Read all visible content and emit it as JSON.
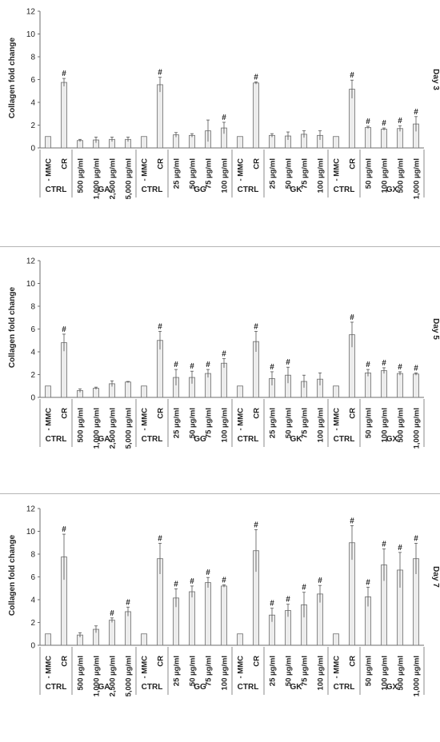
{
  "axis": {
    "ylabel": "Collagen fold change",
    "ylim": [
      0,
      12
    ],
    "yticks": [
      "0",
      "2",
      "4",
      "6",
      "8",
      "10",
      "12"
    ]
  },
  "category_labels": [
    "- MMC",
    "CR",
    "500 µg/ml",
    "1,000 µg/ml",
    "2,500 µg/ml",
    "5,000 µg/ml",
    "- MMC",
    "CR",
    "25 µg/ml",
    "50 µg/ml",
    "75 µg/ml",
    "100 µg/ml",
    "- MMC",
    "CR",
    "25 µg/ml",
    "50 µg/ml",
    "75 µg/ml",
    "100 µg/ml",
    "- MMC",
    "CR",
    "50 µg/ml",
    "100 µg/ml",
    "500 µg/ml",
    "1,000 µg/ml"
  ],
  "groups": [
    {
      "label": "CTRL",
      "count": 2
    },
    {
      "label": "GA",
      "count": 4
    },
    {
      "label": "CTRL",
      "count": 2
    },
    {
      "label": "GG",
      "count": 4
    },
    {
      "label": "CTRL",
      "count": 2
    },
    {
      "label": "GK",
      "count": 4
    },
    {
      "label": "CTRL",
      "count": 2
    },
    {
      "label": "GX",
      "count": 4
    }
  ],
  "significance_marker": "#",
  "colors": {
    "bar_fill": "#ececec",
    "bar_stroke": "#6e6e6e",
    "axis": "#6e6e6e",
    "divider": "#b5b5b5"
  },
  "chart_data": [
    {
      "type": "bar",
      "title": "Day 3",
      "ylabel": "Collagen fold change",
      "ylim": [
        0,
        12
      ],
      "values": [
        1.0,
        5.75,
        0.65,
        0.7,
        0.75,
        0.75,
        1.0,
        5.55,
        1.15,
        1.1,
        1.5,
        1.75,
        1.0,
        5.7,
        1.1,
        1.05,
        1.2,
        1.1,
        1.0,
        5.15,
        1.8,
        1.65,
        1.7,
        2.1
      ],
      "errors": [
        0.0,
        0.35,
        0.1,
        0.25,
        0.2,
        0.2,
        0.0,
        0.65,
        0.2,
        0.15,
        0.95,
        0.5,
        0.0,
        0.1,
        0.15,
        0.35,
        0.3,
        0.4,
        0.0,
        0.8,
        0.1,
        0.1,
        0.25,
        0.65
      ],
      "significant": [
        false,
        true,
        false,
        false,
        false,
        false,
        false,
        true,
        false,
        false,
        false,
        true,
        false,
        true,
        false,
        false,
        false,
        false,
        false,
        true,
        true,
        true,
        true,
        true
      ]
    },
    {
      "type": "bar",
      "title": "Day 5",
      "ylabel": "Collagen fold change",
      "ylim": [
        0,
        12
      ],
      "values": [
        1.0,
        4.8,
        0.6,
        0.8,
        1.2,
        1.35,
        1.0,
        5.0,
        1.75,
        1.75,
        2.1,
        3.0,
        1.0,
        4.9,
        1.65,
        1.95,
        1.4,
        1.6,
        1.0,
        5.5,
        2.15,
        2.35,
        2.1,
        2.05
      ],
      "errors": [
        0.0,
        0.75,
        0.15,
        0.1,
        0.25,
        0.05,
        0.0,
        0.8,
        0.7,
        0.55,
        0.35,
        0.4,
        0.0,
        0.9,
        0.6,
        0.7,
        0.55,
        0.55,
        0.0,
        1.1,
        0.3,
        0.25,
        0.15,
        0.1
      ],
      "significant": [
        false,
        true,
        false,
        false,
        false,
        false,
        false,
        true,
        true,
        true,
        true,
        true,
        false,
        true,
        true,
        true,
        false,
        false,
        false,
        true,
        true,
        true,
        true,
        true
      ]
    },
    {
      "type": "bar",
      "title": "Day 7",
      "ylabel": "Collagen fold change",
      "ylim": [
        0,
        12
      ],
      "values": [
        1.0,
        7.75,
        0.9,
        1.4,
        2.2,
        2.95,
        1.0,
        7.6,
        4.15,
        4.7,
        5.5,
        5.2,
        1.0,
        8.3,
        2.65,
        3.05,
        3.55,
        4.5,
        1.0,
        9.0,
        4.25,
        7.05,
        6.6,
        7.6
      ],
      "errors": [
        0.0,
        2.0,
        0.2,
        0.3,
        0.2,
        0.4,
        0.0,
        1.35,
        0.8,
        0.5,
        0.45,
        0.1,
        0.0,
        1.85,
        0.6,
        0.55,
        1.1,
        0.75,
        0.0,
        1.5,
        0.85,
        1.4,
        1.55,
        1.35
      ],
      "significant": [
        false,
        true,
        false,
        false,
        true,
        true,
        false,
        true,
        true,
        true,
        true,
        true,
        false,
        true,
        true,
        true,
        true,
        true,
        false,
        true,
        true,
        true,
        true,
        true
      ]
    }
  ]
}
